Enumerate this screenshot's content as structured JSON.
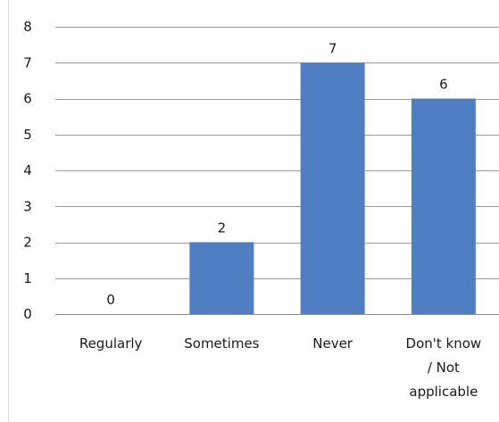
{
  "chart_data": {
    "type": "bar",
    "title": "",
    "xlabel": "",
    "ylabel": "",
    "ylim": [
      0,
      8
    ],
    "yticks": [
      0,
      1,
      2,
      3,
      4,
      5,
      6,
      7,
      8
    ],
    "grid": true,
    "legend": "none",
    "bar_color": "#4f7ec2",
    "grid_color": "#9a9a9a",
    "categories": [
      [
        "Regularly"
      ],
      [
        "Sometimes"
      ],
      [
        "Never"
      ],
      [
        "Don't know",
        "/ Not",
        "applicable"
      ]
    ],
    "values": [
      0,
      2,
      7,
      6
    ],
    "data_labels": [
      "0",
      "2",
      "7",
      "6"
    ]
  }
}
